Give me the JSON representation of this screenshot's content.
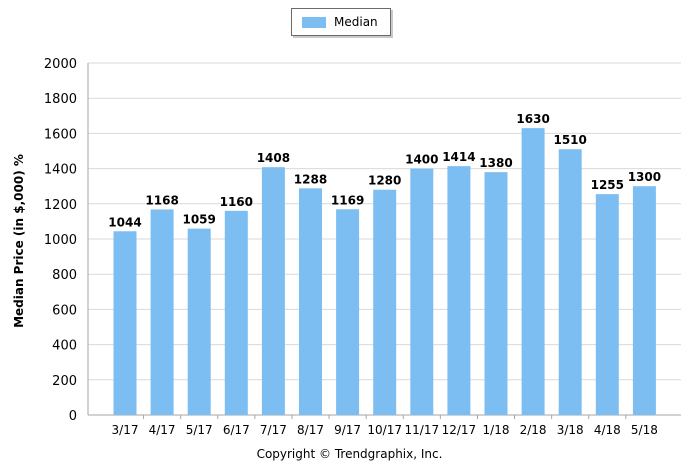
{
  "legend": {
    "label": "Median",
    "color": "#7dbef2"
  },
  "footer": {
    "copyright": "Copyright © Trendgraphix, Inc."
  },
  "chart_data": {
    "type": "bar",
    "categories": [
      "3/17",
      "4/17",
      "5/17",
      "6/17",
      "7/17",
      "8/17",
      "9/17",
      "10/17",
      "11/17",
      "12/17",
      "1/18",
      "2/18",
      "3/18",
      "4/18",
      "5/18"
    ],
    "series": [
      {
        "name": "Median",
        "values": [
          1044,
          1168,
          1059,
          1160,
          1408,
          1288,
          1169,
          1280,
          1400,
          1414,
          1380,
          1630,
          1510,
          1255,
          1300
        ]
      }
    ],
    "ylabel": "Median Price (in $,000) %",
    "ylim": [
      0,
      2000
    ],
    "yticks": [
      0,
      200,
      400,
      600,
      800,
      1000,
      1200,
      1400,
      1600,
      1800,
      2000
    ],
    "grid": true,
    "legend_position": "top-center",
    "bar_color": "#7dbef2"
  }
}
